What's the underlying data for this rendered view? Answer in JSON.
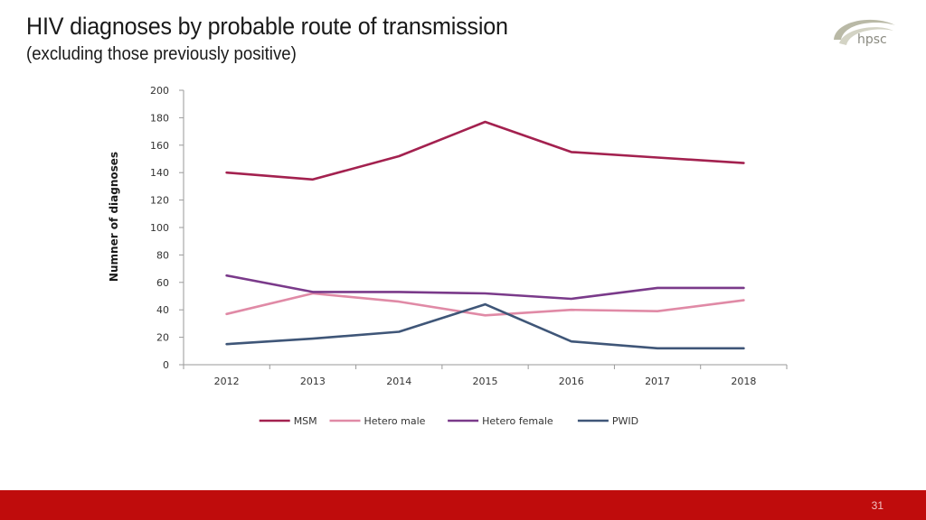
{
  "slide": {
    "title": "HIV diagnoses by probable route of transmission",
    "subtitle": "(excluding those previously positive)",
    "logo_text": "hpsc",
    "page_number": "31"
  },
  "colors": {
    "MSM": "#a3214f",
    "Hetero male": "#e08aa6",
    "Hetero female": "#7a3a8a",
    "PWID": "#3f5678",
    "footer": "#bf0c0c"
  },
  "chart_data": {
    "type": "line",
    "title": "",
    "xlabel": "",
    "ylabel": "Numner of diagnoses",
    "categories": [
      "2012",
      "2013",
      "2014",
      "2015",
      "2016",
      "2017",
      "2018"
    ],
    "ylim": [
      0,
      200
    ],
    "yticks": [
      0,
      20,
      40,
      60,
      80,
      100,
      120,
      140,
      160,
      180,
      200
    ],
    "legend_position": "bottom",
    "series": [
      {
        "name": "MSM",
        "values": [
          140,
          135,
          152,
          177,
          155,
          151,
          147
        ]
      },
      {
        "name": "Hetero male",
        "values": [
          37,
          52,
          46,
          36,
          40,
          39,
          47
        ]
      },
      {
        "name": "Hetero female",
        "values": [
          65,
          53,
          53,
          52,
          48,
          56,
          56
        ]
      },
      {
        "name": "PWID",
        "values": [
          15,
          19,
          24,
          44,
          17,
          12,
          12
        ]
      }
    ]
  }
}
